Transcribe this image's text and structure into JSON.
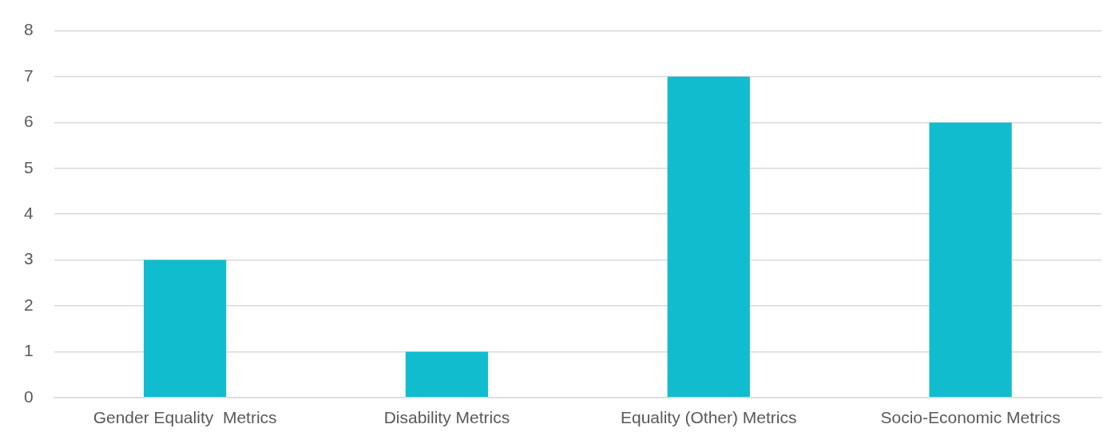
{
  "chart_data": {
    "type": "bar",
    "categories": [
      "Gender Equality  Metrics",
      "Disability Metrics",
      "Equality (Other) Metrics",
      "Socio-Economic Metrics"
    ],
    "values": [
      3,
      1,
      7,
      6
    ],
    "color": "#12bccf",
    "ylim": [
      0,
      8
    ],
    "yticks": [
      0,
      1,
      2,
      3,
      4,
      5,
      6,
      7,
      8
    ],
    "grid": "y",
    "legend": false
  }
}
